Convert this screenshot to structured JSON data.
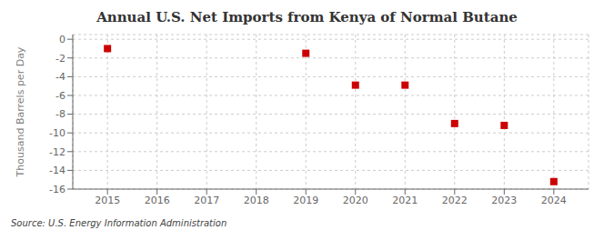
{
  "chart_data": {
    "type": "scatter",
    "title": "Annual U.S. Net Imports from Kenya of Normal Butane",
    "y_label": "Thousand Barrels per Day",
    "annotations": [
      "Source: U.S. Energy Information Administration"
    ],
    "x": [
      2015,
      2019,
      2020,
      2021,
      2022,
      2023,
      2024
    ],
    "values": [
      -1.0,
      -1.5,
      -4.9,
      -4.9,
      -9.0,
      -9.2,
      -15.2
    ],
    "color": "#cc0000",
    "marker": "square",
    "xlim": [
      2014.3,
      2024.7
    ],
    "ylim": [
      -16,
      0.5
    ],
    "xticks": [
      2015,
      2016,
      2017,
      2018,
      2019,
      2020,
      2021,
      2022,
      2023,
      2024
    ],
    "yticks": [
      0,
      -2,
      -4,
      -6,
      -8,
      -10,
      -12,
      -14,
      -16
    ],
    "grid": true
  }
}
